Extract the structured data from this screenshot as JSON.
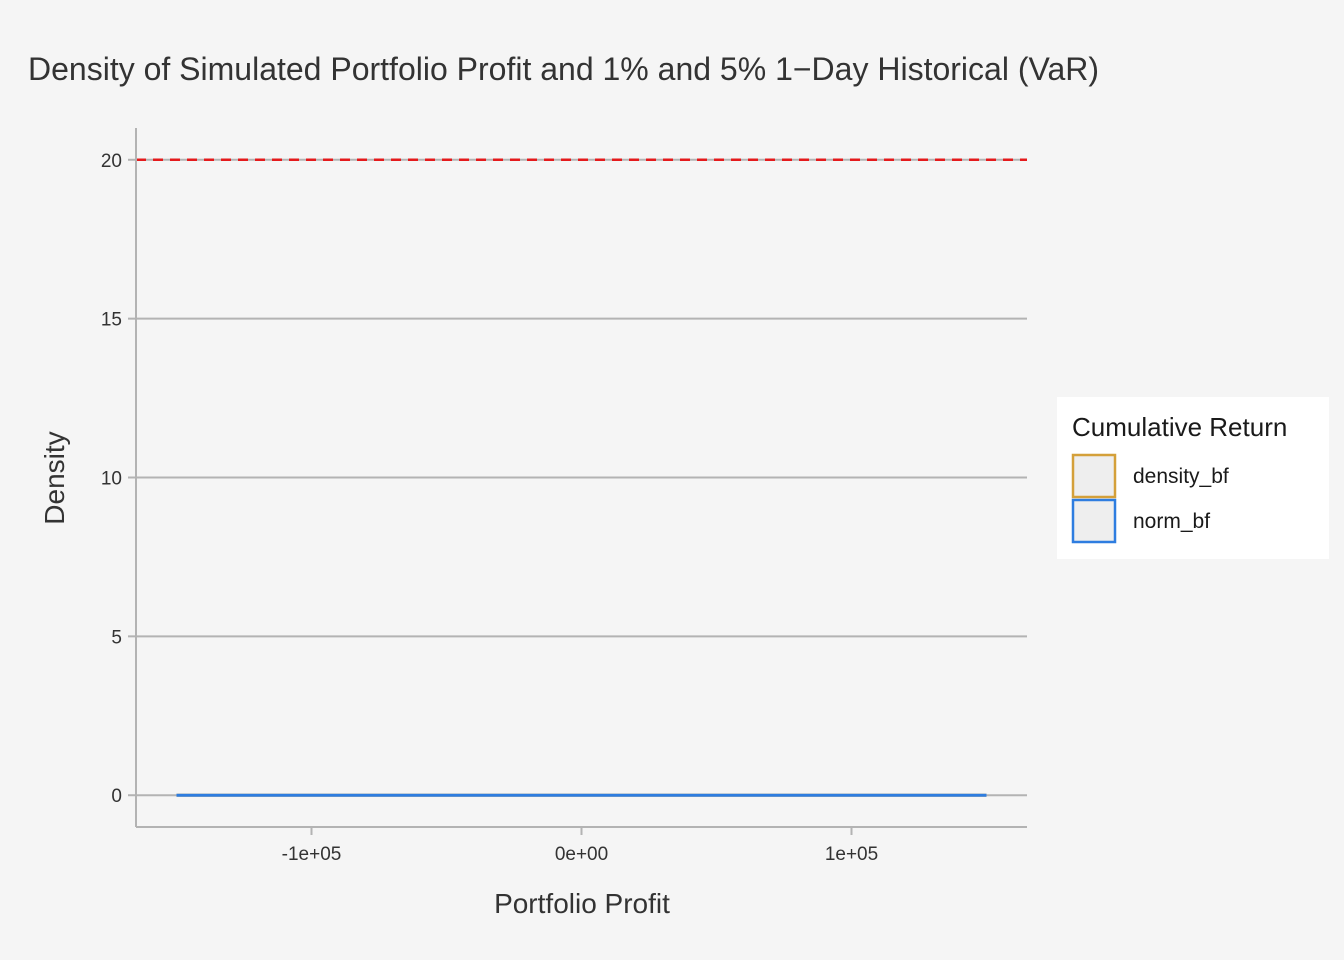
{
  "chart_data": {
    "type": "line",
    "title": "Density of Simulated Portfolio Profit and 1% and 5% 1−Day Historical (VaR)",
    "xlabel": "Portfolio Profit",
    "ylabel": "Density",
    "xlim": [
      -165000,
      165000
    ],
    "ylim": [
      -1,
      21
    ],
    "x_ticks": [
      -100000,
      0,
      100000
    ],
    "x_tick_labels": [
      "-1e+05",
      "0e+00",
      "1e+05"
    ],
    "y_ticks": [
      0,
      5,
      10,
      15,
      20
    ],
    "y_tick_labels": [
      "0",
      "5",
      "10",
      "15",
      "20"
    ],
    "grid": "horizontal-major",
    "legend": {
      "title": "Cumulative Return",
      "placement": "right",
      "entries": [
        {
          "label": "density_bf",
          "color": "#d4a03a"
        },
        {
          "label": "norm_bf",
          "color": "#2e7de0"
        }
      ]
    },
    "series": [
      {
        "name": "density_bf",
        "color": "#d4a03a",
        "x": [
          -150000,
          150000
        ],
        "y": [
          0,
          0
        ]
      },
      {
        "name": "norm_bf",
        "color": "#2e7de0",
        "x": [
          -150000,
          -100000,
          -50000,
          0,
          50000,
          100000,
          150000
        ],
        "y": [
          0,
          0,
          0,
          0,
          0,
          0,
          0
        ]
      }
    ],
    "reference_lines": [
      {
        "orientation": "horizontal",
        "value": 20,
        "color": "#e41a1c",
        "style": "dashed"
      }
    ]
  },
  "colors": {
    "background": "#f5f5f5",
    "gridline": "#b3b3b3",
    "axis": "#b3b3b3",
    "text": "#333333",
    "legend_background": "#ffffff",
    "legend_key_fill": "#eeeeee"
  }
}
